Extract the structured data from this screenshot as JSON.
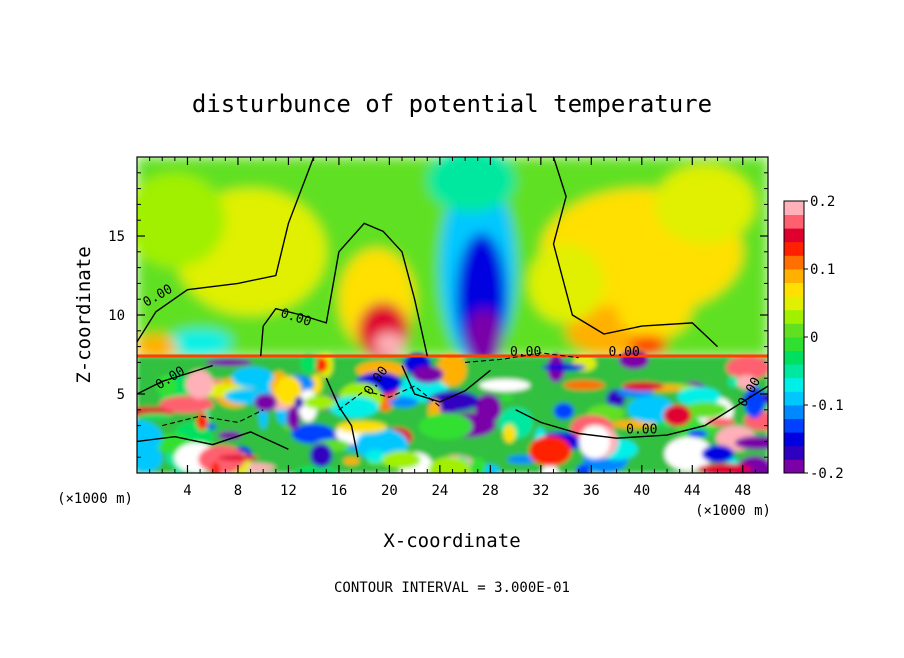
{
  "chart_data": {
    "type": "heatmap",
    "title": "disturbunce of potential temperature",
    "xlabel": "X-coordinate",
    "ylabel": "Z-coordinate",
    "x_unit": "(×1000 m)",
    "x_unit_right": "(×1000 m)",
    "x_ticks": [
      4,
      8,
      12,
      16,
      20,
      24,
      28,
      32,
      36,
      40,
      44,
      48
    ],
    "y_ticks": [
      5,
      10,
      15
    ],
    "xlim": [
      0,
      50
    ],
    "ylim": [
      0,
      20
    ],
    "colorbar": {
      "ticks": [
        "0.2",
        "0.1",
        "0",
        "-0.1",
        "-0.2"
      ],
      "tick_values": [
        0.2,
        0.1,
        0,
        -0.1,
        -0.2
      ],
      "range": [
        -0.2,
        0.2
      ],
      "colors": [
        "#7a00a8",
        "#3000c0",
        "#0000e0",
        "#0040ff",
        "#0088ff",
        "#00c8ff",
        "#00f0e8",
        "#00e8a0",
        "#00e060",
        "#30e030",
        "#60e020",
        "#a0f000",
        "#e0f000",
        "#ffe000",
        "#ffb000",
        "#ff7000",
        "#ff2000",
        "#e00030",
        "#ff6070",
        "#ffb0b8"
      ]
    },
    "contour_labels": [
      {
        "text": "0.00",
        "x": 1.8,
        "z": 11.0,
        "angle": -30
      },
      {
        "text": "0.00",
        "x": 12.5,
        "z": 9.6,
        "angle": 18
      },
      {
        "text": "0.00",
        "x": 2.8,
        "z": 5.8,
        "angle": -32
      },
      {
        "text": "0.00",
        "x": 19.2,
        "z": 5.7,
        "angle": -55
      },
      {
        "text": "0.00",
        "x": 30.8,
        "z": 7.4,
        "angle": 0
      },
      {
        "text": "0.00",
        "x": 38.6,
        "z": 7.4,
        "angle": 0
      },
      {
        "text": "0.00",
        "x": 40.0,
        "z": 2.5,
        "angle": 0
      },
      {
        "text": "0.00",
        "x": 48.8,
        "z": 5.0,
        "angle": -60
      }
    ],
    "contour_interval_label": "CONTOUR INTERVAL = 3.000E-01"
  }
}
